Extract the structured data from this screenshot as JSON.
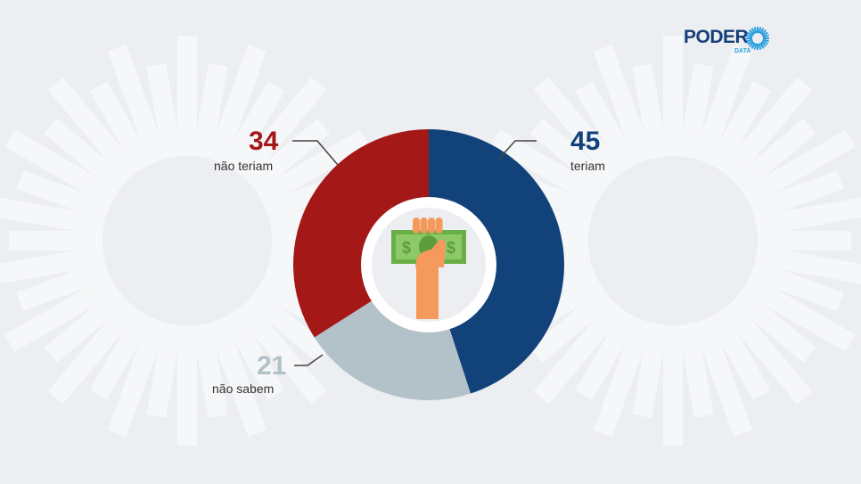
{
  "chart_data": {
    "type": "pie",
    "variant": "donut",
    "unit": "%",
    "slices": [
      {
        "label": "teriam",
        "value": 45,
        "color": "#12427a"
      },
      {
        "label": "não sabem",
        "value": 21,
        "color": "#b3c1c8"
      },
      {
        "label": "não teriam",
        "value": 34,
        "color": "#a51818"
      }
    ],
    "center_icon": "hand-holding-money-icon"
  },
  "logo": {
    "name": "PODER",
    "sub": "DATA",
    "color": "#163e78",
    "accent": "#2a9fe0"
  }
}
